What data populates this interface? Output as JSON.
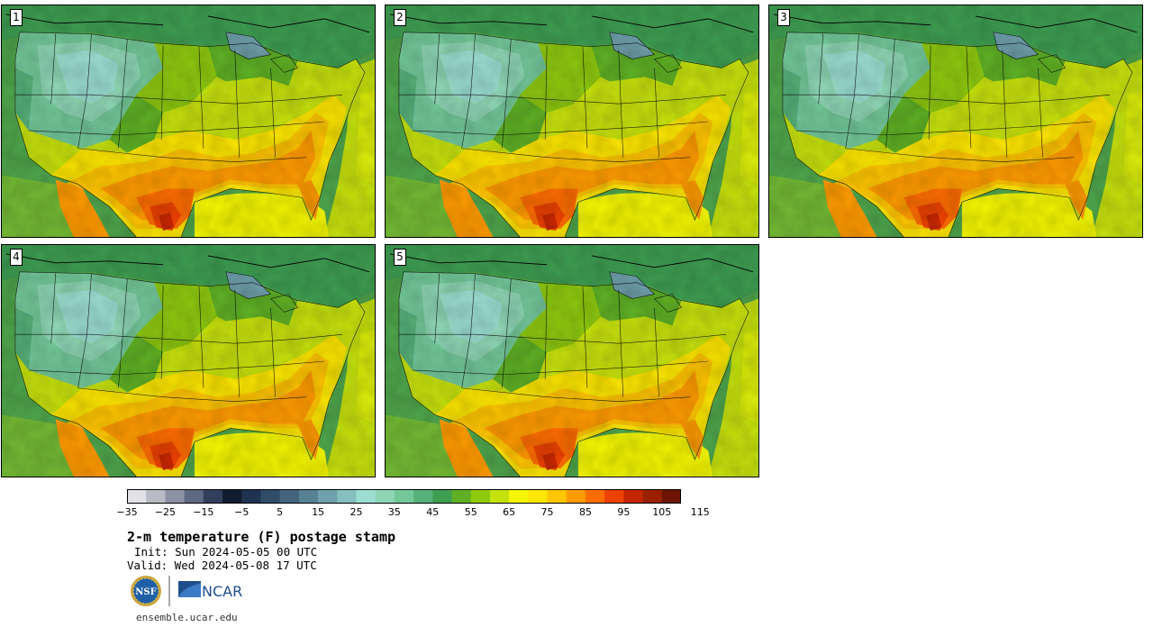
{
  "panels": [
    {
      "label": "1"
    },
    {
      "label": "2"
    },
    {
      "label": "3"
    },
    {
      "label": "4"
    },
    {
      "label": "5"
    }
  ],
  "colorbar": {
    "colors": [
      "#e2e2e6",
      "#b8bac4",
      "#8c91a4",
      "#5f6882",
      "#323f5c",
      "#111b30",
      "#1f3350",
      "#304c66",
      "#43647c",
      "#578094",
      "#6fa0ab",
      "#86bfbf",
      "#9cdfd0",
      "#8ed6b4",
      "#74c89a",
      "#57b27a",
      "#3e9e52",
      "#5fb025",
      "#8fca0f",
      "#c6e20d",
      "#f4f700",
      "#fde600",
      "#ffc500",
      "#ff9b00",
      "#ff6d00",
      "#ec4200",
      "#c32600",
      "#992000",
      "#6c1505"
    ],
    "tick_labels": [
      "−35",
      "−25",
      "−15",
      "−5",
      "5",
      "15",
      "25",
      "35",
      "45",
      "55",
      "65",
      "75",
      "85",
      "95",
      "105",
      "115"
    ]
  },
  "title": "2-m temperature (F) postage stamp",
  "init": "Init: Sun 2024-05-05 00 UTC",
  "valid": "Valid: Wed 2024-05-08 17 UTC",
  "logos": {
    "left": "NSF",
    "right": "NCAR"
  },
  "site": "ensemble.ucar.edu"
}
